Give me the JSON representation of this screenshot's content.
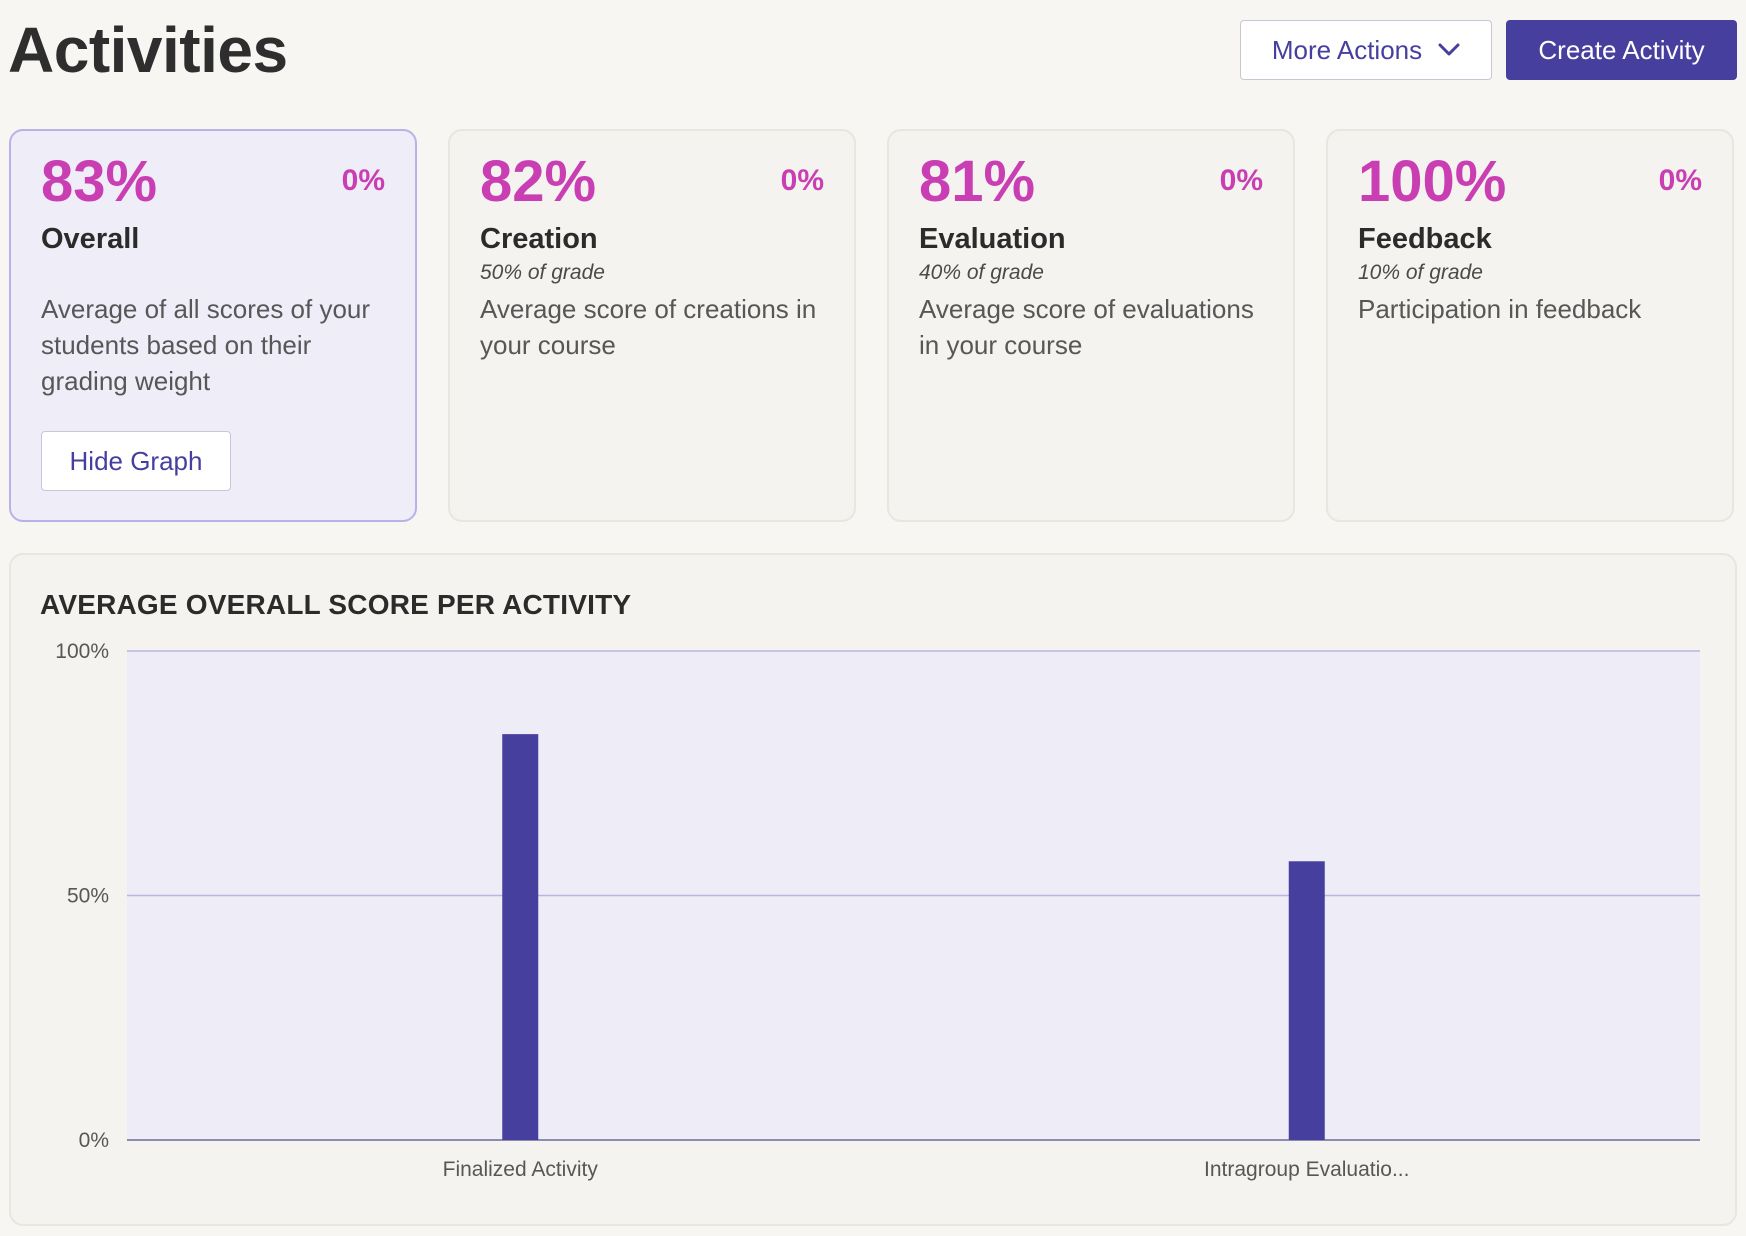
{
  "header": {
    "title": "Activities",
    "more_actions_label": "More Actions",
    "create_activity_label": "Create Activity"
  },
  "cards": [
    {
      "percent": "83%",
      "delta": "0%",
      "name": "Overall",
      "weight": "",
      "description": "Average of all scores of your students based on their grading weight",
      "button_label": "Hide Graph",
      "selected": true
    },
    {
      "percent": "82%",
      "delta": "0%",
      "name": "Creation",
      "weight": "50% of grade",
      "description": "Average score of creations in your course"
    },
    {
      "percent": "81%",
      "delta": "0%",
      "name": "Evaluation",
      "weight": "40% of grade",
      "description": "Average score of evaluations in your course"
    },
    {
      "percent": "100%",
      "delta": "0%",
      "name": "Feedback",
      "weight": "10% of grade",
      "description": "Participation in feedback"
    }
  ],
  "colors": {
    "accent": "#463f9e",
    "highlight": "#c93fb3",
    "plot_background": "#eeecf7",
    "bar": "#463f9e"
  },
  "icons": {
    "more_actions": "chevron-down-icon"
  },
  "chart_data": {
    "type": "bar",
    "title": "AVERAGE OVERALL SCORE PER ACTIVITY",
    "categories": [
      "Finalized Activity",
      "Intragroup Evaluatio..."
    ],
    "values": [
      83,
      57
    ],
    "ylim": [
      0,
      100
    ],
    "yticks": [
      0,
      50,
      100
    ],
    "ytick_labels": [
      "0%",
      "50%",
      "100%"
    ],
    "xlabel": "",
    "ylabel": "",
    "grid": true
  }
}
